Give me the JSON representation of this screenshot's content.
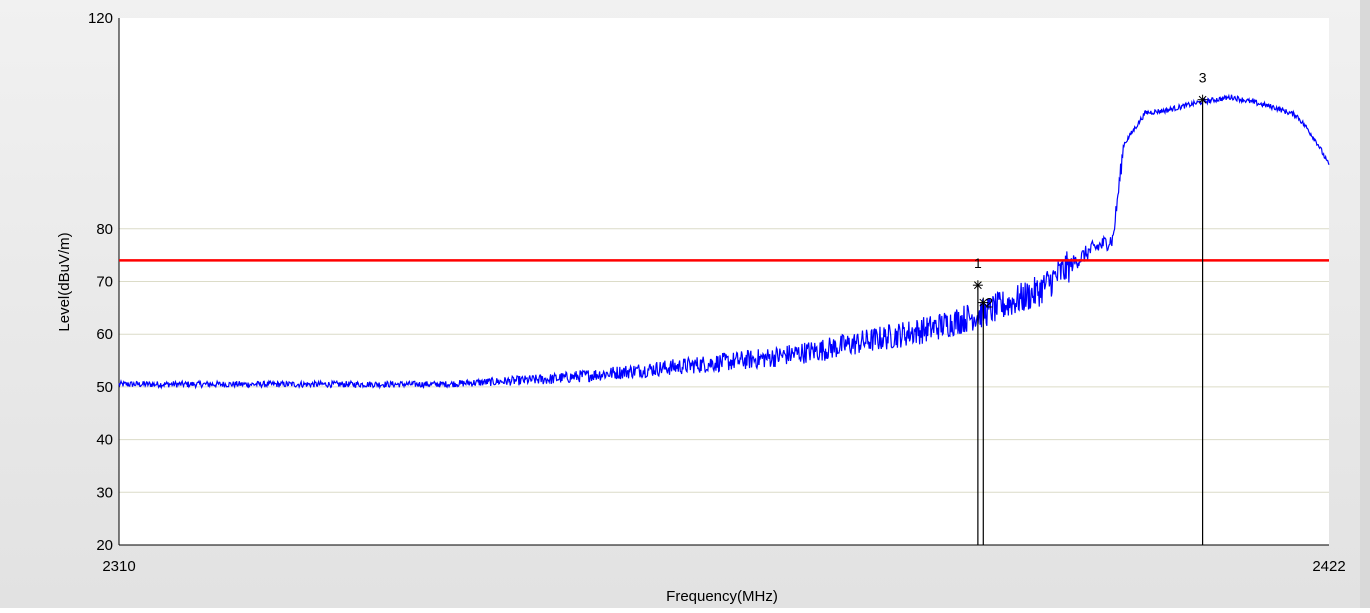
{
  "chart_data": {
    "type": "line",
    "title": "",
    "xlabel": "Frequency(MHz)",
    "ylabel": "Level(dBuV/m)",
    "xlim": [
      2310,
      2422
    ],
    "ylim": [
      20,
      120
    ],
    "x_tick_labels": [
      "2310",
      "2422"
    ],
    "y_tick_labels": [
      "20",
      "30",
      "40",
      "50",
      "60",
      "70",
      "80",
      "120"
    ],
    "y_gridlines": [
      20,
      30,
      40,
      50,
      60,
      70,
      80
    ],
    "grid": true,
    "limit_line": {
      "value": 74,
      "color": "#ff0000"
    },
    "series": [
      {
        "color": "#0000ff",
        "x": [
          2310,
          2320,
          2330,
          2340,
          2345,
          2350,
          2355,
          2360,
          2365,
          2370,
          2375,
          2380,
          2385,
          2390,
          2395,
          2398,
          2400,
          2402,
          2403,
          2405,
          2407,
          2410,
          2413,
          2415,
          2417,
          2419,
          2420,
          2421,
          2422
        ],
        "y": [
          50.5,
          50.5,
          50.5,
          50.5,
          51,
          51.5,
          52.5,
          53.5,
          54.5,
          55.5,
          57,
          59,
          61,
          64,
          68,
          73,
          76,
          78,
          96,
          102,
          102.5,
          104,
          105,
          104,
          103,
          101.5,
          99,
          96,
          92
        ]
      }
    ],
    "markers": [
      {
        "label": "1",
        "x": 2389.5,
        "y": 69.3
      },
      {
        "label": "2",
        "x": 2390,
        "y": 66
      },
      {
        "label": "3",
        "x": 2410.3,
        "y": 104.5
      }
    ]
  }
}
